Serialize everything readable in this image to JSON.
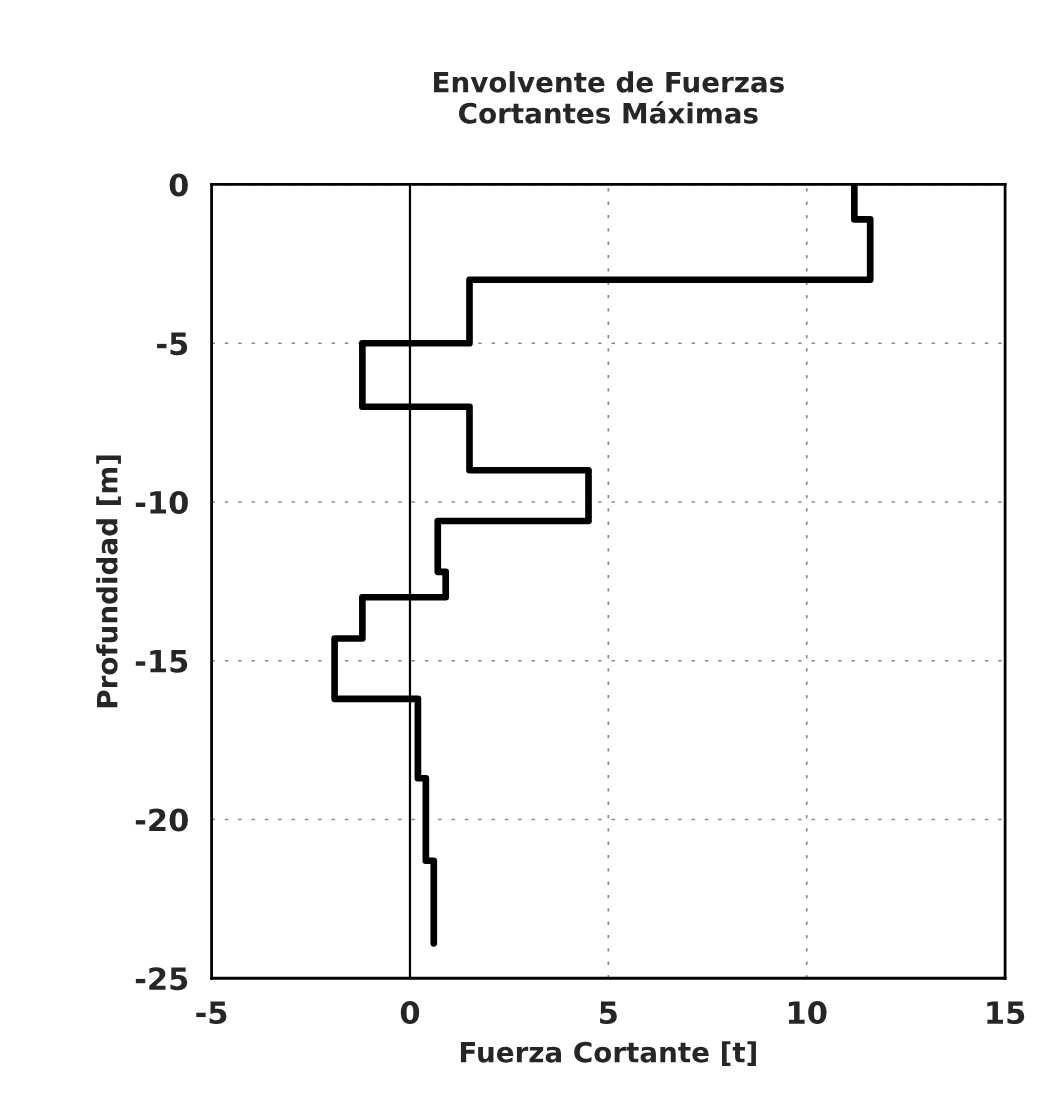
{
  "chart_data": {
    "type": "line",
    "title": "Envolvente de Fuerzas\nCortantes Máximas",
    "xlabel": "Fuerza Cortante [t]",
    "ylabel": "Profundidad [m]",
    "series": [
      {
        "color": "#000000",
        "x": [
          11.2,
          11.2,
          11.6,
          11.6,
          1.5,
          1.5,
          -1.2,
          -1.2,
          1.5,
          1.5,
          4.5,
          4.5,
          0.7,
          0.7,
          0.9,
          0.9,
          -1.2,
          -1.2,
          -1.9,
          -1.9,
          0.2,
          0.2,
          0.4,
          0.4,
          0.6,
          0.6
        ],
        "values": [
          0,
          -1.1,
          -1.1,
          -3.0,
          -3.0,
          -5.0,
          -5.0,
          -7.0,
          -7.0,
          -9.0,
          -9.0,
          -10.6,
          -10.6,
          -12.2,
          -12.2,
          -13.0,
          -13.0,
          -14.3,
          -14.3,
          -16.2,
          -16.2,
          -18.7,
          -18.7,
          -21.3,
          -21.3,
          -23.9
        ]
      }
    ],
    "xlim": [
      -5,
      15
    ],
    "ylim": [
      -25,
      0
    ],
    "xticks": [
      -5,
      0,
      5,
      10,
      15
    ],
    "yticks": [
      -25,
      -20,
      -15,
      -10,
      -5,
      0
    ],
    "ref_lines": [
      {
        "axis": "x",
        "value": 0,
        "color": "#000000",
        "line_style": "solid"
      }
    ],
    "grid": true,
    "legend": false,
    "marker": "none",
    "line_style": "solid"
  }
}
